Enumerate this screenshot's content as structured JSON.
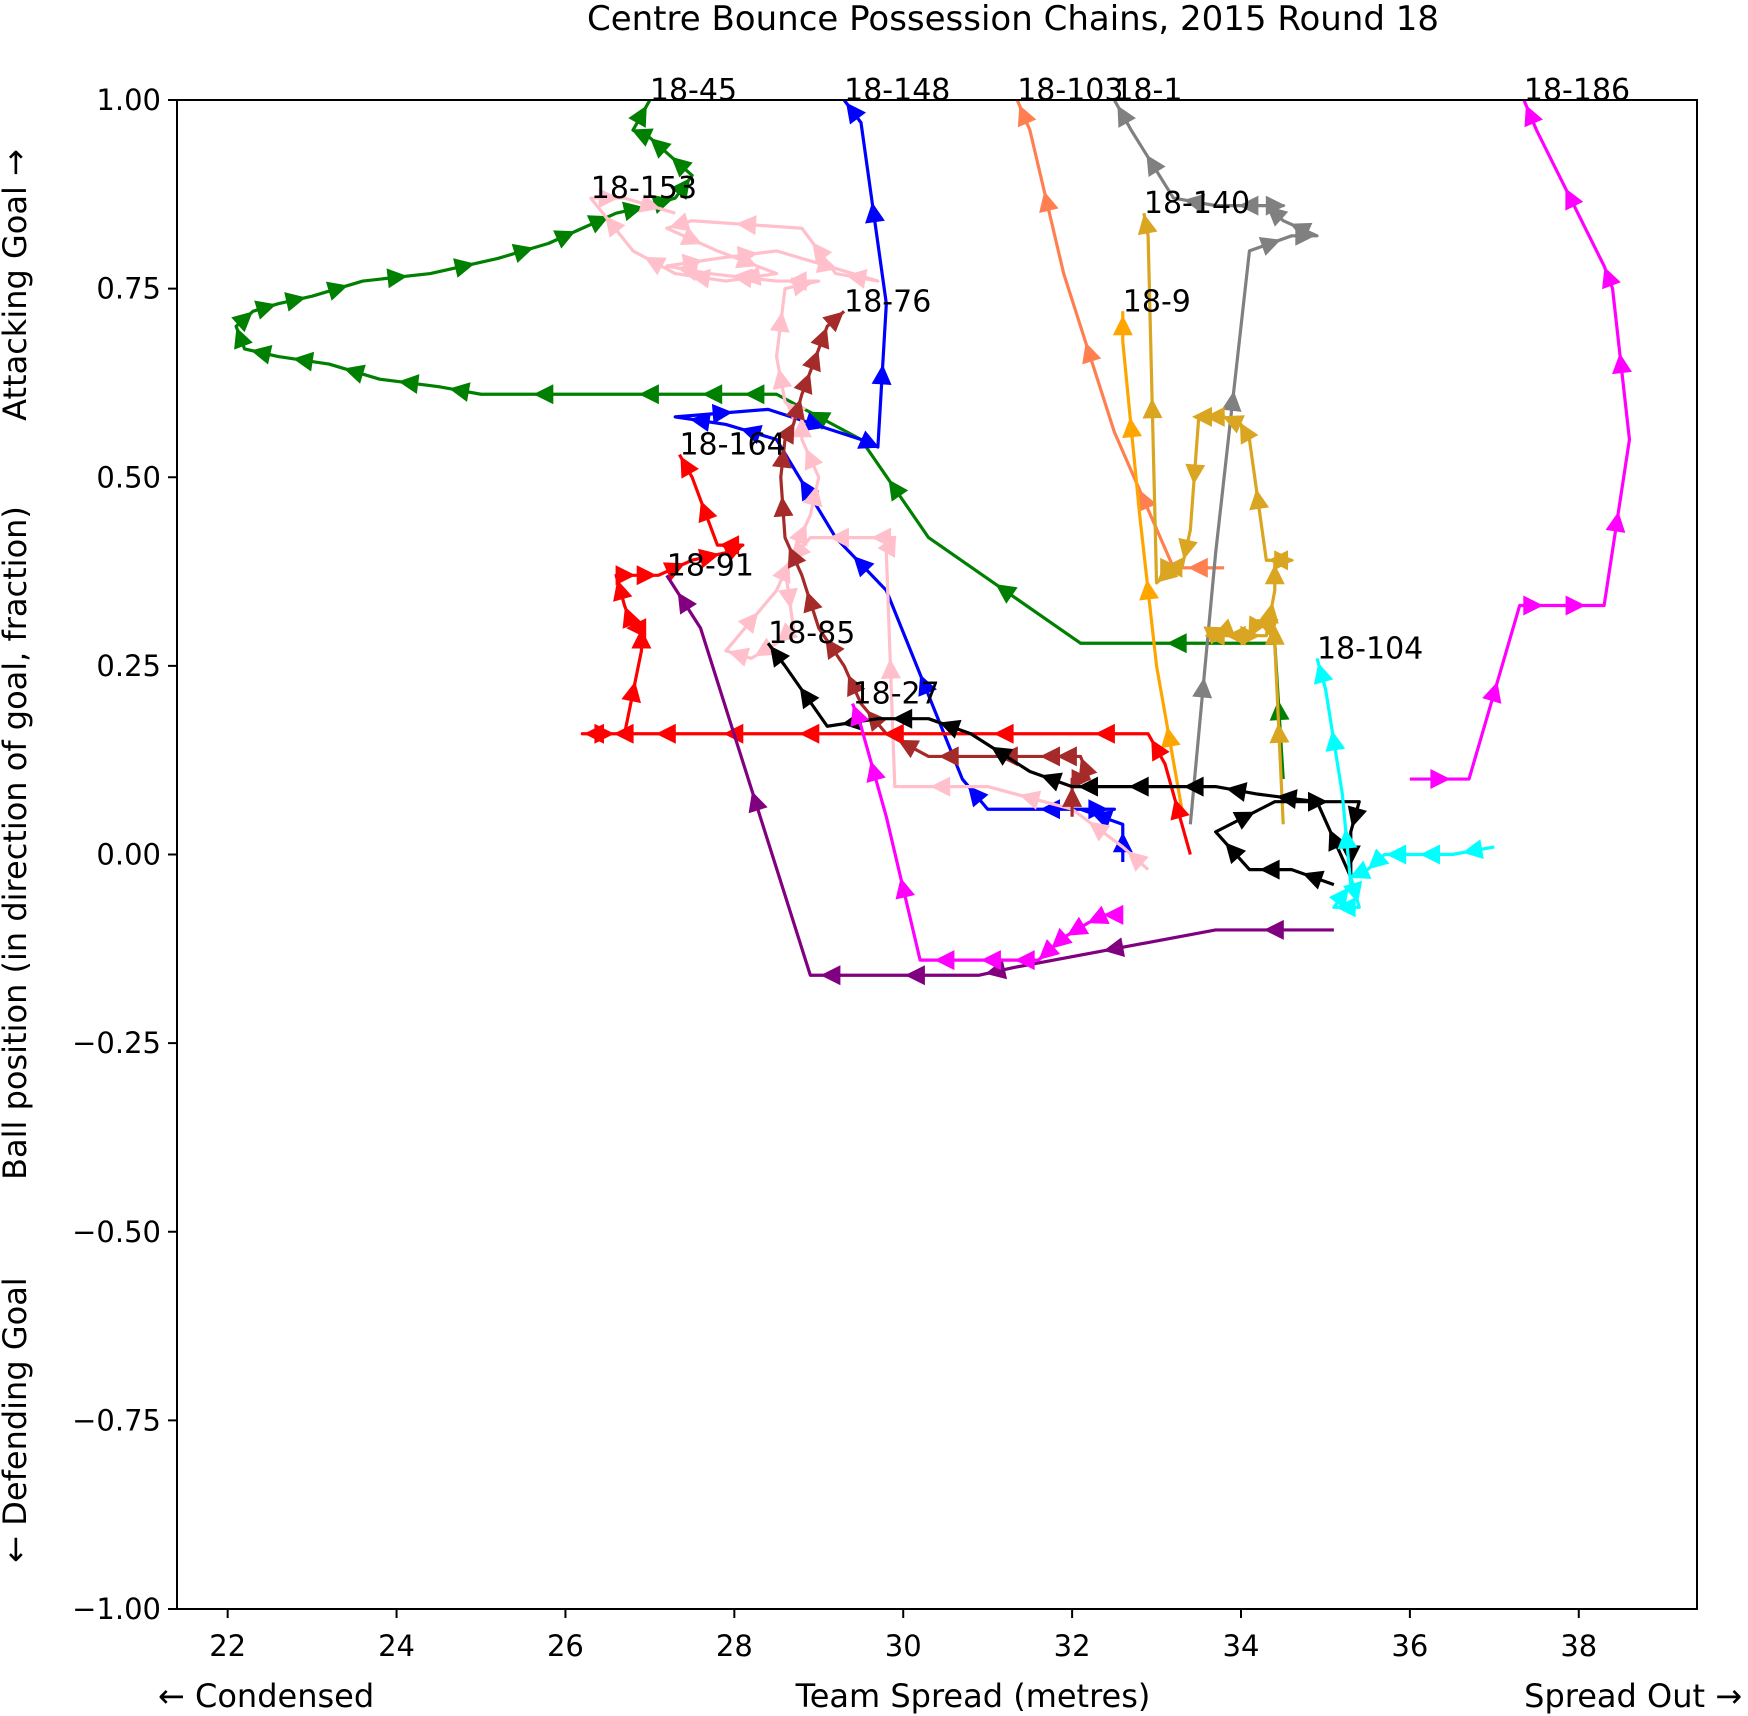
{
  "chart_data": {
    "type": "line",
    "title": "Centre Bounce Possession Chains, 2015 Round 18",
    "xlabel": "Team Spread (metres)",
    "xlabel_left": "← Condensed",
    "xlabel_right": "Spread Out →",
    "ylabel": "Ball position (in direction of goal, fraction)",
    "ylabel_top": "Attacking Goal →",
    "ylabel_bottom": "← Defending Goal",
    "xlim": [
      21.4,
      39.4
    ],
    "ylim": [
      -1.0,
      1.0
    ],
    "xticks": [
      22,
      24,
      26,
      28,
      30,
      32,
      34,
      36,
      38
    ],
    "yticks": [
      -1.0,
      -0.75,
      -0.5,
      -0.25,
      0.0,
      0.25,
      0.5,
      0.75,
      1.0
    ],
    "ytick_labels": [
      "−1.00",
      "−0.75",
      "−0.50",
      "−0.25",
      "0.00",
      "0.25",
      "0.50",
      "0.75",
      "1.00"
    ],
    "grid": false,
    "series": [
      {
        "name": "18-45",
        "color": "#008000",
        "x": [
          34.5,
          34.4,
          32.1,
          30.3,
          29.5,
          28.5,
          28.0,
          27.5,
          26.5,
          25.0,
          24.5,
          23.8,
          23.2,
          22.6,
          22.2,
          22.1,
          22.3,
          22.6,
          23.0,
          23.6,
          24.4,
          25.2,
          25.8,
          26.2,
          26.6,
          27.0,
          27.3,
          27.5,
          27.2,
          27.0,
          26.8,
          27.0
        ],
        "y": [
          0.1,
          0.28,
          0.28,
          0.42,
          0.55,
          0.61,
          0.61,
          0.61,
          0.61,
          0.61,
          0.62,
          0.63,
          0.65,
          0.66,
          0.67,
          0.7,
          0.72,
          0.73,
          0.74,
          0.76,
          0.77,
          0.79,
          0.81,
          0.83,
          0.85,
          0.86,
          0.87,
          0.9,
          0.93,
          0.95,
          0.96,
          1.0
        ]
      },
      {
        "name": "18-148",
        "color": "#0000ff",
        "x": [
          32.6,
          32.6,
          32.1,
          32.5,
          31.0,
          30.7,
          29.8,
          29.2,
          28.5,
          27.9,
          27.3,
          28.4,
          29.5,
          29.7,
          29.8,
          29.5,
          29.3
        ],
        "y": [
          -0.01,
          0.04,
          0.06,
          0.06,
          0.06,
          0.1,
          0.35,
          0.42,
          0.55,
          0.57,
          0.58,
          0.59,
          0.55,
          0.54,
          0.73,
          0.97,
          1.0
        ]
      },
      {
        "name": "18-103",
        "color": "#ff7f50",
        "x": [
          33.8,
          33.2,
          32.5,
          31.9,
          31.5,
          31.35
        ],
        "y": [
          0.38,
          0.38,
          0.56,
          0.77,
          0.96,
          1.0
        ]
      },
      {
        "name": "18-1",
        "color": "#808080",
        "x": [
          33.4,
          33.7,
          34.1,
          34.6,
          34.9,
          34.5,
          34.3,
          34.5,
          33.7,
          33.2,
          32.7,
          32.5
        ],
        "y": [
          0.04,
          0.4,
          0.8,
          0.82,
          0.82,
          0.84,
          0.86,
          0.86,
          0.86,
          0.87,
          0.96,
          1.0
        ]
      },
      {
        "name": "18-186",
        "color": "#ff00ff",
        "x": [
          36.0,
          36.7,
          37.3,
          37.6,
          38.3,
          38.6,
          38.4,
          38.3,
          37.5,
          37.35
        ],
        "y": [
          0.1,
          0.1,
          0.33,
          0.33,
          0.33,
          0.55,
          0.75,
          0.78,
          0.96,
          1.0
        ]
      },
      {
        "name": "18-153",
        "color": "#ffc0cb",
        "x": [
          32.9,
          32.6,
          32.0,
          31.0,
          29.9,
          29.8,
          29.9,
          29.6,
          28.9,
          28.6,
          28.7,
          28.5,
          28.2,
          27.9,
          28.5,
          28.7,
          28.9,
          29.0,
          28.8,
          28.8,
          28.6,
          28.5,
          28.6,
          29.0,
          28.5,
          27.7,
          27.2,
          27.8,
          28.5,
          29.7,
          29.2,
          28.8,
          27.5,
          27.2,
          27.8,
          28.5,
          27.9,
          27.3,
          26.8,
          26.3,
          26.7,
          27.3
        ],
        "y": [
          -0.02,
          0.01,
          0.06,
          0.09,
          0.09,
          0.4,
          0.42,
          0.42,
          0.42,
          0.38,
          0.3,
          0.28,
          0.26,
          0.27,
          0.35,
          0.4,
          0.45,
          0.5,
          0.55,
          0.58,
          0.6,
          0.66,
          0.75,
          0.76,
          0.76,
          0.77,
          0.78,
          0.79,
          0.8,
          0.76,
          0.77,
          0.83,
          0.84,
          0.83,
          0.8,
          0.77,
          0.76,
          0.77,
          0.8,
          0.87,
          0.87,
          0.85
        ]
      },
      {
        "name": "18-140",
        "color": "#daa520",
        "x": [
          34.5,
          34.4,
          34.4,
          34.2,
          34.1,
          33.8,
          33.6,
          33.8,
          33.9,
          34.3,
          34.4,
          34.4,
          34.6,
          34.3,
          34.1,
          34.0,
          33.8,
          33.6,
          33.5,
          33.4,
          33.3,
          33.1,
          33.2,
          33.0,
          32.9,
          32.85
        ],
        "y": [
          0.04,
          0.28,
          0.3,
          0.31,
          0.29,
          0.29,
          0.29,
          0.3,
          0.29,
          0.29,
          0.35,
          0.39,
          0.39,
          0.39,
          0.55,
          0.57,
          0.58,
          0.58,
          0.58,
          0.43,
          0.38,
          0.38,
          0.38,
          0.36,
          0.82,
          0.85
        ]
      },
      {
        "name": "18-9",
        "color": "#ffa500",
        "x": [
          33.3,
          33.0,
          32.8,
          32.6,
          32.6
        ],
        "y": [
          0.06,
          0.25,
          0.45,
          0.68,
          0.72
        ]
      },
      {
        "name": "18-76",
        "color": "#a52a2a",
        "x": [
          32.0,
          32.0,
          32.2,
          32.1,
          31.8,
          31.7,
          30.8,
          30.3,
          29.8,
          29.5,
          29.3,
          29.0,
          28.8,
          28.6,
          28.55,
          28.6,
          28.7,
          28.8,
          28.9,
          29.0,
          29.1,
          29.3
        ],
        "y": [
          0.05,
          0.1,
          0.1,
          0.13,
          0.13,
          0.13,
          0.13,
          0.13,
          0.16,
          0.2,
          0.25,
          0.3,
          0.37,
          0.42,
          0.5,
          0.55,
          0.57,
          0.61,
          0.64,
          0.67,
          0.7,
          0.72
        ]
      },
      {
        "name": "18-164",
        "color": "#ff0000",
        "x": [
          33.4,
          33.1,
          32.9,
          31.9,
          30.5,
          29.3,
          28.5,
          27.5,
          26.9,
          26.5,
          26.2,
          26.7,
          26.9,
          26.9,
          26.8,
          26.7,
          26.6,
          26.8,
          27.1,
          27.5,
          27.9,
          28.1,
          27.8,
          27.5,
          27.35
        ],
        "y": [
          0.0,
          0.12,
          0.16,
          0.16,
          0.16,
          0.16,
          0.16,
          0.16,
          0.16,
          0.16,
          0.16,
          0.16,
          0.27,
          0.3,
          0.3,
          0.33,
          0.37,
          0.37,
          0.37,
          0.39,
          0.4,
          0.41,
          0.41,
          0.5,
          0.53
        ]
      },
      {
        "name": "18-91",
        "color": "#800080",
        "x": [
          35.1,
          33.7,
          31.3,
          30.9,
          29.4,
          28.9,
          27.6,
          27.2
        ],
        "y": [
          -0.1,
          -0.1,
          -0.15,
          -0.16,
          -0.16,
          -0.16,
          0.3,
          0.37
        ]
      },
      {
        "name": "18-85",
        "color": "#000000",
        "x": [
          35.1,
          34.6,
          34.1,
          33.7,
          34.4,
          35.4,
          35.3,
          35.3,
          34.9,
          34.2,
          33.7,
          33.2,
          32.4,
          32.0,
          31.5,
          30.8,
          30.3,
          29.7,
          29.1,
          28.6,
          28.4
        ],
        "y": [
          -0.04,
          -0.02,
          -0.02,
          0.03,
          0.07,
          0.07,
          0.03,
          -0.03,
          0.07,
          0.08,
          0.09,
          0.09,
          0.09,
          0.09,
          0.11,
          0.16,
          0.18,
          0.18,
          0.17,
          0.25,
          0.28
        ]
      },
      {
        "name": "18-27",
        "color": "#ff00ff",
        "x": [
          32.6,
          32.4,
          32.2,
          31.9,
          31.8,
          31.6,
          31.3,
          30.8,
          30.2,
          29.8,
          29.5,
          29.4
        ],
        "y": [
          -0.08,
          -0.08,
          -0.09,
          -0.11,
          -0.12,
          -0.14,
          -0.14,
          -0.14,
          -0.14,
          0.05,
          0.17,
          0.2
        ]
      },
      {
        "name": "18-104",
        "color": "#00ffff",
        "x": [
          37.0,
          36.5,
          36.0,
          35.7,
          35.5,
          35.3,
          35.4,
          35.1,
          35.3,
          35.2,
          35.0,
          34.9
        ],
        "y": [
          0.01,
          0.0,
          0.0,
          0.0,
          -0.02,
          -0.03,
          -0.07,
          -0.07,
          -0.04,
          0.08,
          0.22,
          0.26
        ]
      }
    ],
    "labels": [
      {
        "text": "18-45",
        "x": 27.0,
        "y": 1.0
      },
      {
        "text": "18-148",
        "x": 29.3,
        "y": 1.0
      },
      {
        "text": "18-103",
        "x": 31.35,
        "y": 1.0
      },
      {
        "text": "18-1",
        "x": 32.5,
        "y": 1.0
      },
      {
        "text": "18-186",
        "x": 37.35,
        "y": 1.0
      },
      {
        "text": "18-153",
        "x": 26.3,
        "y": 0.87
      },
      {
        "text": "18-140",
        "x": 32.85,
        "y": 0.85
      },
      {
        "text": "18-9",
        "x": 32.6,
        "y": 0.72
      },
      {
        "text": "18-76",
        "x": 29.3,
        "y": 0.72
      },
      {
        "text": "18-164",
        "x": 27.35,
        "y": 0.53
      },
      {
        "text": "18-91",
        "x": 27.2,
        "y": 0.37
      },
      {
        "text": "18-85",
        "x": 28.4,
        "y": 0.28
      },
      {
        "text": "18-27",
        "x": 29.4,
        "y": 0.2
      },
      {
        "text": "18-104",
        "x": 34.9,
        "y": 0.26
      }
    ]
  }
}
